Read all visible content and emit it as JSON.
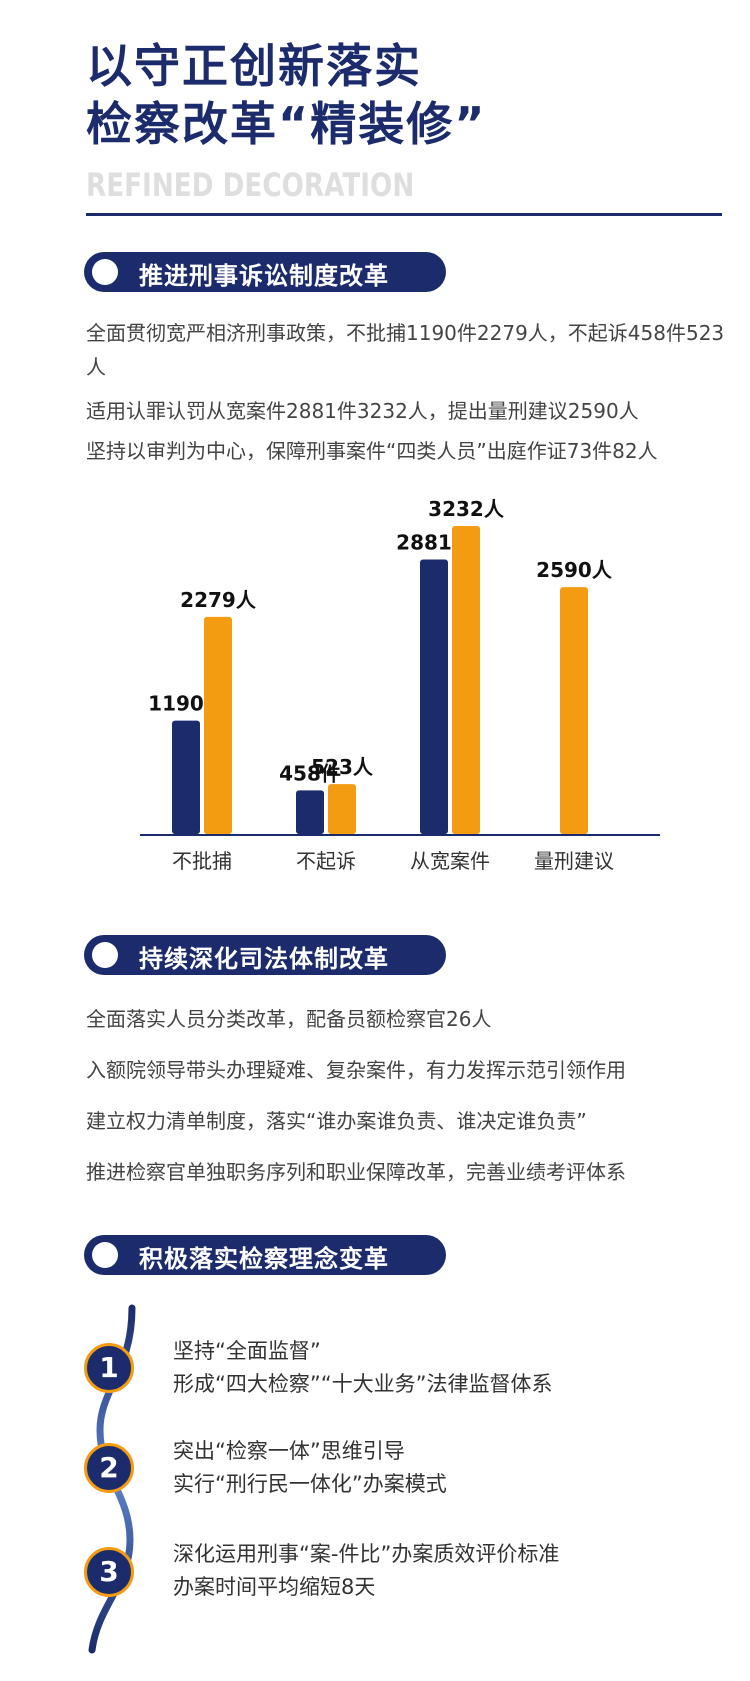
{
  "header": {
    "title_line1": "以守正创新落实",
    "title_line2": "检察改革“精装修”",
    "subtitle_en": "REFINED DECORATION"
  },
  "section1": {
    "title": "推进刑事诉讼制度改革",
    "paragraphs": [
      "全面贯彻宽严相济刑事政策，不批捕1190件2279人，不起诉458件523人",
      "适用认罪认罚从宽案件2881件3232人，提出量刑建议2590人",
      "坚持以审判为中心，保障刑事案件“四类人员”出庭作证73件82人"
    ]
  },
  "chart_data": {
    "type": "bar",
    "categories": [
      "不批捕",
      "不起诉",
      "从宽案件",
      "量刑建议"
    ],
    "series": [
      {
        "values": [
          1190,
          458,
          2881,
          null
        ],
        "labels": [
          "1190件",
          "458件",
          "2881件",
          ""
        ],
        "color": "#1c2b6b"
      },
      {
        "values": [
          2279,
          523,
          3232,
          2590
        ],
        "labels": [
          "2279人",
          "523人",
          "3232人",
          "2590人"
        ],
        "color": "#f39c12"
      }
    ],
    "ylim": [
      0,
      3232
    ]
  },
  "section2": {
    "title": "持续深化司法体制改革",
    "paragraphs": [
      "全面落实人员分类改革，配备员额检察官26人",
      "入额院领导带头办理疑难、复杂案件，有力发挥示范引领作用",
      "建立权力清单制度，落实“谁办案谁负责、谁决定谁负责”",
      "推进检察官单独职务序列和职业保障改革，完善业绩考评体系"
    ]
  },
  "section3": {
    "title": "积极落实检察理念变革",
    "items": [
      {
        "num": "1",
        "line1": "坚持“全面监督”",
        "line2": "形成“四大检察”“十大业务”法律监督体系"
      },
      {
        "num": "2",
        "line1": "突出“检察一体”思维引导",
        "line2": "实行“刑行民一体化”办案模式"
      },
      {
        "num": "3",
        "line1": "深化运用刑事“案-件比”办案质效评价标准",
        "line2": "办案时间平均缩短8天"
      }
    ]
  },
  "colors": {
    "navy": "#1c2b6b",
    "orange": "#f39c12"
  }
}
